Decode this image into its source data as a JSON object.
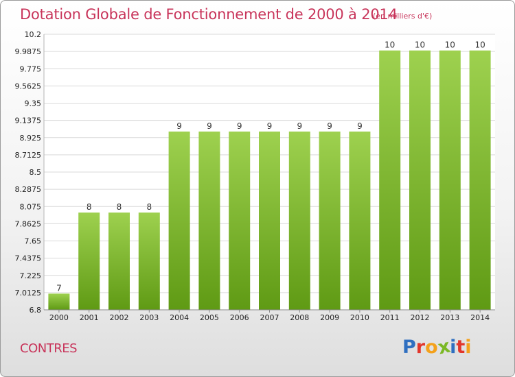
{
  "header": {
    "title": "Dotation Globale de Fonctionnement de 2000 à 2014",
    "subtitle": "(en milliers d'€)"
  },
  "footer": {
    "commune": "CONTRES",
    "logo_text": "Proxiti"
  },
  "colors": {
    "title": "#c8345a",
    "bar_light": "#9ed14f",
    "bar_dark": "#5f9a14",
    "logo_letters": [
      "#2f6fc0",
      "#e2362b",
      "#f4a11b",
      "#7bb825",
      "#2f6fc0",
      "#e2362b",
      "#f4a11b"
    ]
  },
  "chart_data": {
    "type": "bar",
    "title": "Dotation Globale de Fonctionnement de 2000 à 2014",
    "subtitle": "(en milliers d'€)",
    "categories": [
      "2000",
      "2001",
      "2002",
      "2003",
      "2004",
      "2005",
      "2006",
      "2007",
      "2008",
      "2009",
      "2010",
      "2011",
      "2012",
      "2013",
      "2014"
    ],
    "values": [
      7,
      8,
      8,
      8,
      9,
      9,
      9,
      9,
      9,
      9,
      9,
      10,
      10,
      10,
      10
    ],
    "data_labels": [
      "7",
      "8",
      "8",
      "8",
      "9",
      "9",
      "9",
      "9",
      "9",
      "9",
      "9",
      "10",
      "10",
      "10",
      "10"
    ],
    "ylim": [
      6.8,
      10.2
    ],
    "yticks": [
      "6.8",
      "7.0125",
      "7.225",
      "7.4375",
      "7.65",
      "7.8625",
      "8.075",
      "8.2875",
      "8.5",
      "8.7125",
      "8.925",
      "9.1375",
      "9.35",
      "9.5625",
      "9.775",
      "9.9875",
      "10.2"
    ],
    "grid": true,
    "legend": "none",
    "xlabel": "",
    "ylabel": ""
  }
}
